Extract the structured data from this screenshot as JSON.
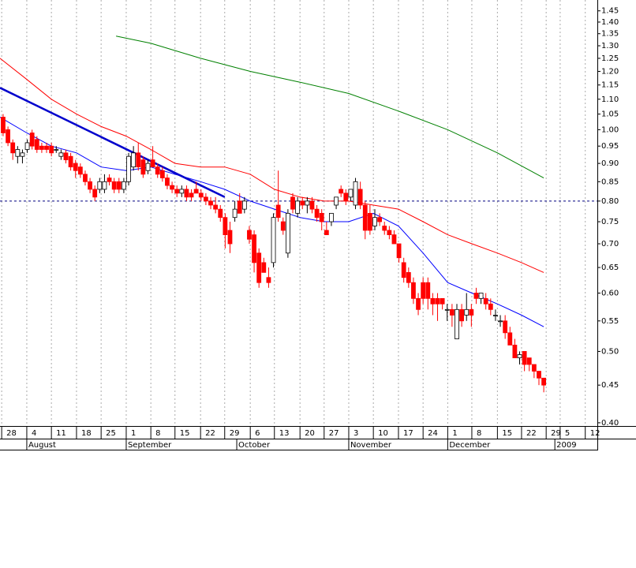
{
  "chart_data": {
    "type": "candlestick",
    "open": [
      1.04,
      1.0,
      0.96,
      0.92,
      0.92,
      0.94,
      0.99,
      0.97,
      0.95,
      0.95,
      0.95,
      0.94,
      0.92,
      0.93,
      0.92,
      0.9,
      0.89,
      0.87,
      0.85,
      0.83,
      0.83,
      0.83,
      0.86,
      0.85,
      0.85,
      0.83,
      0.85,
      0.89,
      0.93,
      0.91,
      0.88,
      0.91,
      0.89,
      0.88,
      0.86,
      0.84,
      0.83,
      0.82,
      0.83,
      0.82,
      0.83,
      0.82,
      0.81,
      0.8,
      0.79,
      0.78,
      0.76,
      0.73,
      0.76,
      0.8,
      0.78,
      0.73,
      0.72,
      0.68,
      0.66,
      0.63,
      0.66,
      0.79,
      0.75,
      0.68,
      0.81,
      0.77,
      0.8,
      0.79,
      0.8,
      0.78,
      0.77,
      0.73,
      0.75,
      0.79,
      0.83,
      0.82,
      0.81,
      0.79,
      0.83,
      0.79,
      0.77,
      0.74,
      0.76,
      0.74,
      0.73,
      0.72,
      0.7,
      0.66,
      0.64,
      0.62,
      0.59,
      0.62,
      0.62,
      0.59,
      0.59,
      0.59,
      0.57,
      0.57,
      0.52,
      0.57,
      0.56,
      0.57,
      0.6,
      0.59,
      0.59,
      0.58,
      0.56,
      0.55,
      0.55,
      0.53,
      0.51,
      0.49,
      0.5,
      0.49,
      0.48,
      0.47,
      0.46
    ],
    "high": [
      1.05,
      1.01,
      0.97,
      0.95,
      0.94,
      0.97,
      1.0,
      0.98,
      0.96,
      0.96,
      0.96,
      0.95,
      0.94,
      0.94,
      0.93,
      0.91,
      0.9,
      0.88,
      0.86,
      0.84,
      0.86,
      0.87,
      0.87,
      0.86,
      0.86,
      0.86,
      0.93,
      0.95,
      0.96,
      0.92,
      0.91,
      0.95,
      0.9,
      0.89,
      0.87,
      0.85,
      0.84,
      0.84,
      0.84,
      0.83,
      0.85,
      0.83,
      0.82,
      0.81,
      0.81,
      0.79,
      0.77,
      0.75,
      0.8,
      0.82,
      0.81,
      0.74,
      0.73,
      0.69,
      0.67,
      0.65,
      0.77,
      0.88,
      0.76,
      0.78,
      0.82,
      0.81,
      0.81,
      0.81,
      0.81,
      0.79,
      0.78,
      0.75,
      0.77,
      0.81,
      0.84,
      0.83,
      0.83,
      0.86,
      0.85,
      0.8,
      0.79,
      0.78,
      0.77,
      0.75,
      0.74,
      0.73,
      0.7,
      0.67,
      0.65,
      0.63,
      0.6,
      0.63,
      0.63,
      0.6,
      0.6,
      0.59,
      0.58,
      0.58,
      0.58,
      0.58,
      0.6,
      0.58,
      0.61,
      0.6,
      0.6,
      0.59,
      0.57,
      0.56,
      0.56,
      0.54,
      0.52,
      0.5,
      0.5,
      0.49,
      0.48,
      0.47,
      0.46
    ],
    "low": [
      0.98,
      0.95,
      0.91,
      0.9,
      0.9,
      0.93,
      0.94,
      0.93,
      0.93,
      0.93,
      0.92,
      0.93,
      0.91,
      0.9,
      0.88,
      0.86,
      0.86,
      0.84,
      0.82,
      0.8,
      0.82,
      0.82,
      0.84,
      0.82,
      0.82,
      0.82,
      0.84,
      0.88,
      0.88,
      0.86,
      0.87,
      0.89,
      0.86,
      0.85,
      0.83,
      0.82,
      0.81,
      0.81,
      0.8,
      0.8,
      0.82,
      0.8,
      0.79,
      0.78,
      0.77,
      0.75,
      0.69,
      0.68,
      0.75,
      0.77,
      0.77,
      0.7,
      0.64,
      0.61,
      0.64,
      0.61,
      0.65,
      0.75,
      0.72,
      0.67,
      0.77,
      0.76,
      0.78,
      0.77,
      0.77,
      0.75,
      0.73,
      0.72,
      0.74,
      0.78,
      0.81,
      0.79,
      0.8,
      0.78,
      0.78,
      0.71,
      0.72,
      0.73,
      0.74,
      0.72,
      0.71,
      0.7,
      0.66,
      0.62,
      0.61,
      0.58,
      0.56,
      0.58,
      0.57,
      0.56,
      0.55,
      0.57,
      0.55,
      0.54,
      0.52,
      0.54,
      0.55,
      0.54,
      0.58,
      0.58,
      0.57,
      0.56,
      0.55,
      0.54,
      0.52,
      0.51,
      0.49,
      0.48,
      0.47,
      0.47,
      0.46,
      0.45,
      0.44
    ],
    "close": [
      0.99,
      0.96,
      0.93,
      0.94,
      0.93,
      0.96,
      0.95,
      0.94,
      0.94,
      0.94,
      0.93,
      0.94,
      0.93,
      0.91,
      0.89,
      0.88,
      0.87,
      0.85,
      0.83,
      0.81,
      0.85,
      0.85,
      0.85,
      0.83,
      0.83,
      0.85,
      0.92,
      0.93,
      0.89,
      0.87,
      0.9,
      0.89,
      0.87,
      0.86,
      0.84,
      0.83,
      0.82,
      0.83,
      0.81,
      0.81,
      0.82,
      0.81,
      0.8,
      0.79,
      0.78,
      0.76,
      0.72,
      0.7,
      0.78,
      0.77,
      0.8,
      0.71,
      0.66,
      0.62,
      0.64,
      0.62,
      0.76,
      0.76,
      0.73,
      0.77,
      0.78,
      0.8,
      0.79,
      0.8,
      0.78,
      0.76,
      0.75,
      0.72,
      0.77,
      0.81,
      0.82,
      0.8,
      0.83,
      0.85,
      0.79,
      0.73,
      0.73,
      0.76,
      0.75,
      0.73,
      0.72,
      0.7,
      0.67,
      0.63,
      0.62,
      0.59,
      0.57,
      0.59,
      0.59,
      0.58,
      0.58,
      0.58,
      0.57,
      0.56,
      0.57,
      0.55,
      0.57,
      0.56,
      0.59,
      0.6,
      0.58,
      0.57,
      0.56,
      0.55,
      0.53,
      0.51,
      0.49,
      0.495,
      0.48,
      0.48,
      0.47,
      0.46,
      0.45
    ],
    "up_color": "#ffffff",
    "down_color": "#ff0000",
    "lines": [
      {
        "color": "#ff0000",
        "width": 1,
        "x": [
          -0.65,
          4.9,
          10,
          15.2,
          20.3,
          25.5,
          30.6,
          35.6,
          40.9,
          45.9,
          51.2,
          56.2,
          61.5,
          66.5,
          71.6,
          76.7,
          81.9,
          87,
          92.1,
          97.1,
          102.4,
          107.4,
          112
        ],
        "values": [
          1.25,
          1.17,
          1.1,
          1.05,
          1.01,
          0.98,
          0.94,
          0.9,
          0.89,
          0.89,
          0.87,
          0.83,
          0.81,
          0.8,
          0.8,
          0.79,
          0.78,
          0.75,
          0.72,
          0.7,
          0.68,
          0.66,
          0.64
        ]
      },
      {
        "color": "#0000ff",
        "width": 1,
        "x": [
          -0.65,
          4.9,
          10,
          15.2,
          20.3,
          25.5,
          30.6,
          35.6,
          40.9,
          45.9,
          51.2,
          56.2,
          61.5,
          66.5,
          71.6,
          76.7,
          81.9,
          87,
          92.1,
          97.1,
          102.4,
          107.4,
          112
        ],
        "values": [
          1.04,
          0.99,
          0.95,
          0.93,
          0.89,
          0.88,
          0.89,
          0.87,
          0.85,
          0.83,
          0.8,
          0.78,
          0.76,
          0.75,
          0.75,
          0.77,
          0.74,
          0.68,
          0.62,
          0.6,
          0.58,
          0.56,
          0.54
        ]
      },
      {
        "color": "#008000",
        "width": 1,
        "x": [
          23.4,
          30.6,
          40.9,
          51.2,
          61.5,
          71.6,
          81.9,
          92.1,
          102.4,
          112
        ],
        "values": [
          1.34,
          1.31,
          1.25,
          1.2,
          1.16,
          1.12,
          1.06,
          1.0,
          0.93,
          0.86
        ]
      },
      {
        "color": "#0000cc",
        "width": 2.5,
        "x": [
          -0.65,
          45.9
        ],
        "values": [
          1.14,
          0.81
        ]
      }
    ],
    "reference_line": {
      "value": 0.8,
      "color": "#000080"
    },
    "log_scale": true,
    "xlim": [
      -0.65,
      123.1
    ],
    "ylim": [
      0.396,
      1.5
    ],
    "yticks": [
      {
        "value": 0.4,
        "label": "0.40"
      },
      0.45,
      {
        "value": 0.5,
        "label": "0.50"
      },
      0.55,
      {
        "value": 0.6,
        "label": "0.60"
      },
      0.65,
      {
        "value": 0.7,
        "label": "0.70"
      },
      0.75,
      {
        "value": 0.8,
        "label": "0.80"
      },
      0.85,
      {
        "value": 0.9,
        "label": "0.90"
      },
      0.95,
      {
        "value": 1.0,
        "label": "1.00"
      },
      1.05,
      {
        "value": 1.1,
        "label": "1.10"
      },
      1.15,
      {
        "value": 1.2,
        "label": "1.20"
      },
      1.25,
      {
        "value": 1.3,
        "label": "1.30"
      },
      1.35,
      {
        "value": 1.4,
        "label": "1.40"
      },
      1.45
    ],
    "xticks": [
      {
        "value": -0.3,
        "label": "28"
      },
      {
        "value": 4.9,
        "label": "4"
      },
      {
        "value": 10,
        "label": "11"
      },
      {
        "value": 15.2,
        "label": "18"
      },
      {
        "value": 20.3,
        "label": "25"
      },
      {
        "value": 25.5,
        "label": "1"
      },
      {
        "value": 30.6,
        "label": "8"
      },
      {
        "value": 35.6,
        "label": "15"
      },
      {
        "value": 40.9,
        "label": "22"
      },
      {
        "value": 45.9,
        "label": "29"
      },
      {
        "value": 51.2,
        "label": "6"
      },
      {
        "value": 56.2,
        "label": "13"
      },
      {
        "value": 61.5,
        "label": "20"
      },
      {
        "value": 66.5,
        "label": "27"
      },
      {
        "value": 71.6,
        "label": "3"
      },
      {
        "value": 76.7,
        "label": "10"
      },
      {
        "value": 81.9,
        "label": "17"
      },
      {
        "value": 87,
        "label": "24"
      },
      {
        "value": 92.1,
        "label": "1"
      },
      {
        "value": 97.1,
        "label": "8"
      },
      {
        "value": 102.4,
        "label": "15"
      },
      {
        "value": 107.4,
        "label": "22"
      },
      {
        "value": 112.5,
        "label": "29"
      },
      {
        "value": 115.4,
        "label": "5"
      },
      {
        "value": 120.6,
        "label": "12"
      }
    ],
    "month_ticks": [
      {
        "value": 4.9,
        "label": "August"
      },
      {
        "value": 25.5,
        "label": "September"
      },
      {
        "value": 48.4,
        "label": "October"
      },
      {
        "value": 71.6,
        "label": "November"
      },
      {
        "value": 92.1,
        "label": "December"
      },
      {
        "value": 114.3,
        "label": "2009"
      }
    ],
    "grid": true
  }
}
